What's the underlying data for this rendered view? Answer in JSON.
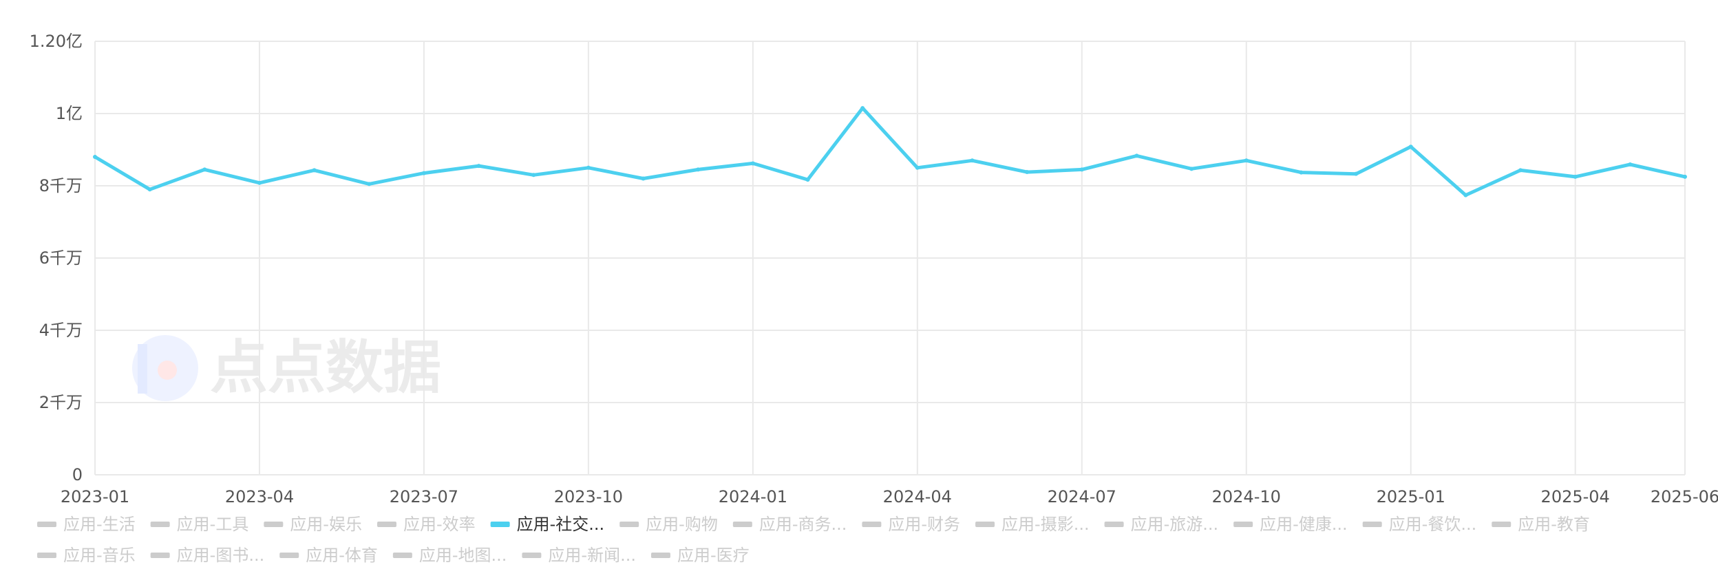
{
  "watermark": {
    "text": "点点数据",
    "logo_letter": "iD"
  },
  "chart_data": {
    "type": "line",
    "title": "",
    "xlabel": "",
    "ylabel": "",
    "y_axis": {
      "min": 0,
      "max": 120000000,
      "ticks": [
        {
          "value": 0,
          "label": "0"
        },
        {
          "value": 20000000,
          "label": "2千万"
        },
        {
          "value": 40000000,
          "label": "4千万"
        },
        {
          "value": 60000000,
          "label": "6千万"
        },
        {
          "value": 80000000,
          "label": "8千万"
        },
        {
          "value": 100000000,
          "label": "1亿"
        },
        {
          "value": 120000000,
          "label": "1.20亿"
        }
      ]
    },
    "x": [
      "2023-01",
      "2023-02",
      "2023-03",
      "2023-04",
      "2023-05",
      "2023-06",
      "2023-07",
      "2023-08",
      "2023-09",
      "2023-10",
      "2023-11",
      "2023-12",
      "2024-01",
      "2024-02",
      "2024-03",
      "2024-04",
      "2024-05",
      "2024-06",
      "2024-07",
      "2024-08",
      "2024-09",
      "2024-10",
      "2024-11",
      "2024-12",
      "2025-01",
      "2025-02",
      "2025-03",
      "2025-04",
      "2025-05",
      "2025-06"
    ],
    "x_tick_labels": [
      "2023-01",
      "2023-04",
      "2023-07",
      "2023-10",
      "2024-01",
      "2024-04",
      "2024-07",
      "2024-10",
      "2025-01",
      "2025-04",
      "2025-06"
    ],
    "grid": true,
    "legend_position": "bottom",
    "series": [
      {
        "name": "应用-社交...",
        "color": "#4cd0ef",
        "active": true,
        "values": [
          88000000,
          79000000,
          84500000,
          80800000,
          84300000,
          80500000,
          83500000,
          85500000,
          83000000,
          85000000,
          82000000,
          84500000,
          86200000,
          81700000,
          101500000,
          85000000,
          87000000,
          83800000,
          84500000,
          88300000,
          84700000,
          87000000,
          83700000,
          83300000,
          90800000,
          77400000,
          84300000,
          82500000,
          85900000,
          82500000
        ]
      }
    ],
    "legend": [
      {
        "label": "应用-生活",
        "active": false
      },
      {
        "label": "应用-工具",
        "active": false
      },
      {
        "label": "应用-娱乐",
        "active": false
      },
      {
        "label": "应用-效率",
        "active": false
      },
      {
        "label": "应用-社交...",
        "active": true
      },
      {
        "label": "应用-购物",
        "active": false
      },
      {
        "label": "应用-商务...",
        "active": false
      },
      {
        "label": "应用-财务",
        "active": false
      },
      {
        "label": "应用-摄影...",
        "active": false
      },
      {
        "label": "应用-旅游...",
        "active": false
      },
      {
        "label": "应用-健康...",
        "active": false
      },
      {
        "label": "应用-餐饮...",
        "active": false
      },
      {
        "label": "应用-教育",
        "active": false
      },
      {
        "label": "应用-音乐",
        "active": false
      },
      {
        "label": "应用-图书...",
        "active": false
      },
      {
        "label": "应用-体育",
        "active": false
      },
      {
        "label": "应用-地图...",
        "active": false
      },
      {
        "label": "应用-新闻...",
        "active": false
      },
      {
        "label": "应用-医疗",
        "active": false
      }
    ],
    "colors": {
      "active_legend_text": "#333333",
      "inactive": "#cccccc",
      "grid": "#e9e9e9",
      "axis_text": "#555555"
    }
  }
}
